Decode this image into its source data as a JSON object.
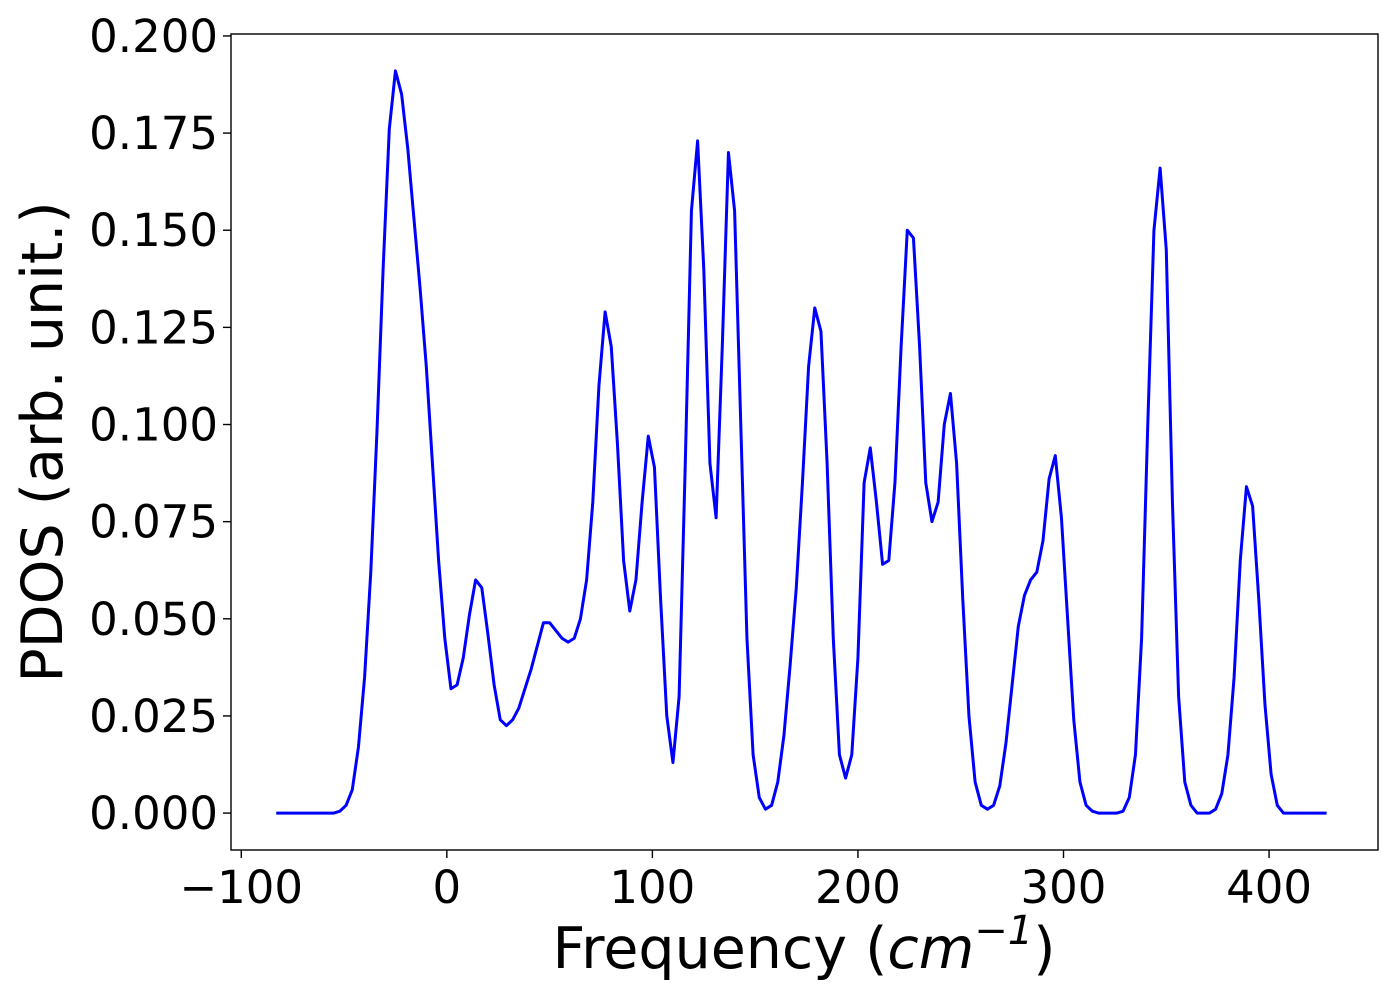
{
  "chart_data": {
    "type": "line",
    "title": "",
    "xlabel": "Frequency (cm⁻¹)",
    "xlabel_text": "Frequency (",
    "xlabel_unit_base": "cm",
    "xlabel_unit_exponent": "−1",
    "xlabel_close": ")",
    "ylabel": "PDOS (arb. unit.)",
    "xlim": [
      -105,
      453
    ],
    "ylim": [
      -0.0095,
      0.2005
    ],
    "x_ticks": [
      -100,
      0,
      100,
      200,
      300,
      400
    ],
    "x_tick_labels": [
      "−100",
      "0",
      "100",
      "200",
      "300",
      "400"
    ],
    "y_ticks": [
      0,
      0.025,
      0.05,
      0.075,
      0.1,
      0.125,
      0.15,
      0.175,
      0.2
    ],
    "y_tick_labels": [
      "0.000",
      "0.025",
      "0.050",
      "0.075",
      "0.100",
      "0.125",
      "0.150",
      "0.175",
      "0.200"
    ],
    "grid": false,
    "legend": "none",
    "line_color": "#0000ff",
    "series": [
      {
        "x": [
          -83,
          -55,
          -52,
          -49,
          -46,
          -43,
          -40,
          -37,
          -34,
          -31,
          -28,
          -25,
          -22,
          -19,
          -16,
          -13,
          -10,
          -7,
          -4,
          -1,
          2,
          5,
          8,
          11,
          14,
          17,
          20,
          23,
          26,
          29,
          32,
          35,
          38,
          41,
          44,
          47,
          50,
          53,
          56,
          59,
          62,
          65,
          68,
          71,
          74,
          77,
          80,
          83,
          86,
          89,
          92,
          95,
          98,
          101,
          104,
          107,
          110,
          113,
          116,
          119,
          122,
          125,
          128,
          131,
          134,
          137,
          140,
          143,
          146,
          149,
          152,
          155,
          158,
          161,
          164,
          167,
          170,
          173,
          176,
          179,
          182,
          185,
          188,
          191,
          194,
          197,
          200,
          203,
          206,
          209,
          212,
          215,
          218,
          221,
          224,
          227,
          230,
          233,
          236,
          239,
          242,
          245,
          248,
          251,
          254,
          257,
          260,
          263,
          266,
          269,
          272,
          275,
          278,
          281,
          284,
          287,
          290,
          293,
          296,
          299,
          302,
          305,
          308,
          311,
          314,
          317,
          320,
          323,
          326,
          329,
          332,
          335,
          338,
          341,
          344,
          347,
          350,
          353,
          356,
          359,
          362,
          365,
          368,
          371,
          374,
          377,
          380,
          383,
          386,
          389,
          392,
          395,
          398,
          401,
          404,
          407,
          428
        ],
        "y": [
          0.0,
          0.0,
          0.0005,
          0.002,
          0.006,
          0.017,
          0.035,
          0.062,
          0.098,
          0.14,
          0.176,
          0.191,
          0.185,
          0.171,
          0.153,
          0.135,
          0.115,
          0.09,
          0.065,
          0.045,
          0.032,
          0.033,
          0.04,
          0.051,
          0.06,
          0.058,
          0.046,
          0.033,
          0.024,
          0.0225,
          0.024,
          0.027,
          0.032,
          0.037,
          0.043,
          0.049,
          0.049,
          0.047,
          0.045,
          0.044,
          0.045,
          0.05,
          0.06,
          0.08,
          0.11,
          0.129,
          0.12,
          0.095,
          0.065,
          0.052,
          0.06,
          0.08,
          0.097,
          0.089,
          0.055,
          0.025,
          0.013,
          0.03,
          0.09,
          0.155,
          0.173,
          0.14,
          0.09,
          0.076,
          0.12,
          0.17,
          0.155,
          0.1,
          0.045,
          0.015,
          0.004,
          0.001,
          0.002,
          0.008,
          0.02,
          0.038,
          0.058,
          0.085,
          0.115,
          0.13,
          0.124,
          0.09,
          0.045,
          0.015,
          0.009,
          0.015,
          0.04,
          0.085,
          0.094,
          0.08,
          0.064,
          0.065,
          0.085,
          0.12,
          0.15,
          0.148,
          0.12,
          0.085,
          0.075,
          0.08,
          0.1,
          0.108,
          0.09,
          0.055,
          0.025,
          0.008,
          0.002,
          0.001,
          0.002,
          0.007,
          0.018,
          0.033,
          0.048,
          0.056,
          0.06,
          0.062,
          0.07,
          0.086,
          0.092,
          0.076,
          0.05,
          0.024,
          0.008,
          0.002,
          0.0005,
          0.0,
          0.0,
          0.0,
          0.0,
          0.0005,
          0.004,
          0.015,
          0.045,
          0.1,
          0.15,
          0.166,
          0.145,
          0.08,
          0.03,
          0.008,
          0.002,
          0.0,
          0.0,
          0.0,
          0.001,
          0.005,
          0.015,
          0.035,
          0.065,
          0.084,
          0.079,
          0.055,
          0.028,
          0.01,
          0.002,
          0.0,
          0.0
        ]
      }
    ]
  }
}
